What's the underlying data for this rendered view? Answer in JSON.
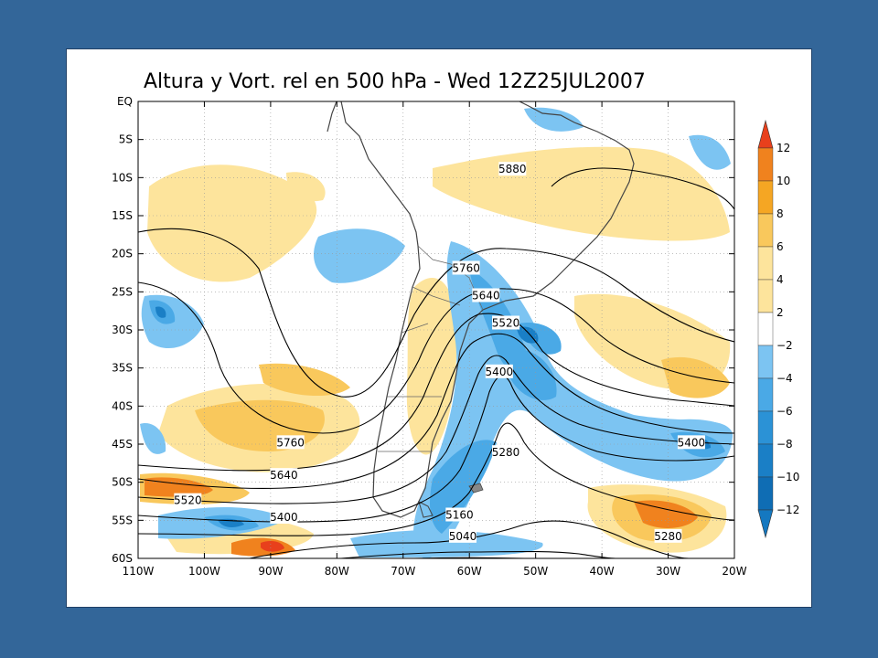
{
  "title": "Altura y Vort. rel en 500 hPa - Wed 12Z25JUL2007",
  "map": {
    "lon_range": [
      -110,
      -20
    ],
    "lat_range": [
      -60,
      0
    ],
    "lon_ticks": [
      {
        "value": -110,
        "label": "110W"
      },
      {
        "value": -100,
        "label": "100W"
      },
      {
        "value": -90,
        "label": "90W"
      },
      {
        "value": -80,
        "label": "80W"
      },
      {
        "value": -70,
        "label": "70W"
      },
      {
        "value": -60,
        "label": "60W"
      },
      {
        "value": -50,
        "label": "50W"
      },
      {
        "value": -40,
        "label": "40W"
      },
      {
        "value": -30,
        "label": "30W"
      },
      {
        "value": -20,
        "label": "20W"
      }
    ],
    "lat_ticks": [
      {
        "value": 0,
        "label": "EQ"
      },
      {
        "value": -5,
        "label": "5S"
      },
      {
        "value": -10,
        "label": "10S"
      },
      {
        "value": -15,
        "label": "15S"
      },
      {
        "value": -20,
        "label": "20S"
      },
      {
        "value": -25,
        "label": "25S"
      },
      {
        "value": -30,
        "label": "30S"
      },
      {
        "value": -35,
        "label": "35S"
      },
      {
        "value": -40,
        "label": "40S"
      },
      {
        "value": -45,
        "label": "45S"
      },
      {
        "value": -50,
        "label": "50S"
      },
      {
        "value": -55,
        "label": "55S"
      },
      {
        "value": -60,
        "label": "60S"
      }
    ],
    "gridlines": true,
    "contour_labels": [
      {
        "label": "5880",
        "lon": -53.5,
        "lat": -8.9
      },
      {
        "label": "5760",
        "lon": -60.5,
        "lat": -21.9
      },
      {
        "label": "5640",
        "lon": -57.5,
        "lat": -25.5
      },
      {
        "label": "5520",
        "lon": -54.5,
        "lat": -29.1
      },
      {
        "label": "5400",
        "lon": -55.5,
        "lat": -35.5
      },
      {
        "label": "5280",
        "lon": -54.5,
        "lat": -46.1
      },
      {
        "label": "5160",
        "lon": -61.5,
        "lat": -54.3
      },
      {
        "label": "5040",
        "lon": -61.0,
        "lat": -57.1
      },
      {
        "label": "5760",
        "lon": -87.0,
        "lat": -44.8
      },
      {
        "label": "5640",
        "lon": -88.0,
        "lat": -49.1
      },
      {
        "label": "5520",
        "lon": -102.5,
        "lat": -52.4
      },
      {
        "label": "5400",
        "lon": -88.0,
        "lat": -54.6
      },
      {
        "label": "5400",
        "lon": -26.5,
        "lat": -44.8
      },
      {
        "label": "5280",
        "lon": -30.0,
        "lat": -57.1
      }
    ]
  },
  "colorbar": {
    "levels": [
      {
        "label": "12",
        "color": "#e8401c"
      },
      {
        "label": "10",
        "color": "#f0821e"
      },
      {
        "label": "8",
        "color": "#f5a623"
      },
      {
        "label": "6",
        "color": "#f9c85c"
      },
      {
        "label": "4",
        "color": "#fde49c"
      },
      {
        "label": "2",
        "color": "#ffffff"
      },
      {
        "label": "−2",
        "color": "#ffffff"
      },
      {
        "label": "−4",
        "color": "#7cc4f2"
      },
      {
        "label": "−6",
        "color": "#4aa9e6"
      },
      {
        "label": "−8",
        "color": "#2b92d6"
      },
      {
        "label": "−10",
        "color": "#1a7fc6"
      },
      {
        "label": "−12",
        "color": "#0f6db4"
      }
    ],
    "top_color": "#e8401c",
    "bottom_color": "#1478c0"
  },
  "colors": {
    "page_background": "#336699",
    "contour": "#000000",
    "coast": "#444444",
    "warm_light": "#fde49c",
    "warm_mid": "#f9c85c",
    "warm_strong": "#f0821e",
    "warm_peak": "#e8401c",
    "cold_light": "#7cc4f2",
    "cold_mid": "#4aa9e6",
    "cold_strong": "#1a7fc6"
  }
}
